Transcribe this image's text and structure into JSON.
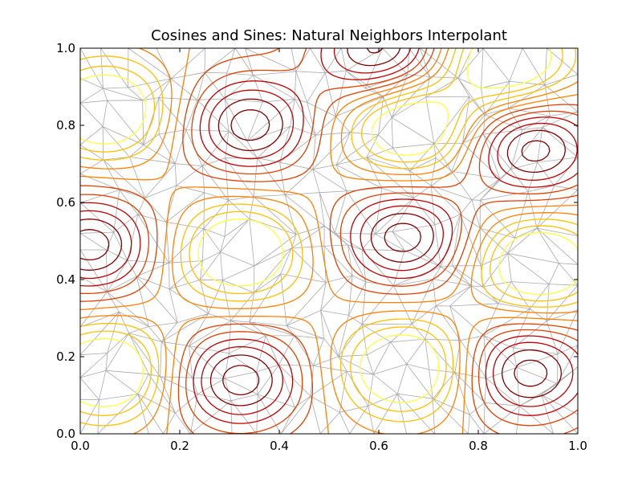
{
  "chart_data": {
    "type": "contour",
    "title": "Cosines and Sines: Natural Neighbors Interpolant",
    "xlabel": "",
    "ylabel": "",
    "xlim": [
      0.0,
      1.0
    ],
    "ylim": [
      0.0,
      1.0
    ],
    "x_ticks": [
      "0.0",
      "0.2",
      "0.4",
      "0.6",
      "0.8",
      "1.0"
    ],
    "y_ticks": [
      "0.0",
      "0.2",
      "0.4",
      "0.6",
      "0.8",
      "1.0"
    ],
    "grid": false,
    "triangulation_color": "#a0a0a0",
    "contour_colormap": [
      "#ffff40",
      "#ffc000",
      "#ff8000",
      "#e04000",
      "#c00000",
      "#800000",
      "#300000"
    ],
    "peaks": [
      {
        "x": 0.02,
        "y": 0.49
      },
      {
        "x": 0.32,
        "y": 0.14
      },
      {
        "x": 0.34,
        "y": 0.8
      },
      {
        "x": 0.65,
        "y": 0.51
      },
      {
        "x": 0.6,
        "y": 0.99
      },
      {
        "x": 0.9,
        "y": 0.16
      },
      {
        "x": 0.91,
        "y": 0.74
      }
    ],
    "valleys": [
      {
        "x": 0.05,
        "y": 0.84
      },
      {
        "x": 0.32,
        "y": 0.47
      },
      {
        "x": 0.65,
        "y": 0.17
      },
      {
        "x": 0.05,
        "y": 0.16
      },
      {
        "x": 0.66,
        "y": 0.8
      },
      {
        "x": 0.92,
        "y": 0.44
      },
      {
        "x": 0.86,
        "y": 0.97
      }
    ]
  }
}
